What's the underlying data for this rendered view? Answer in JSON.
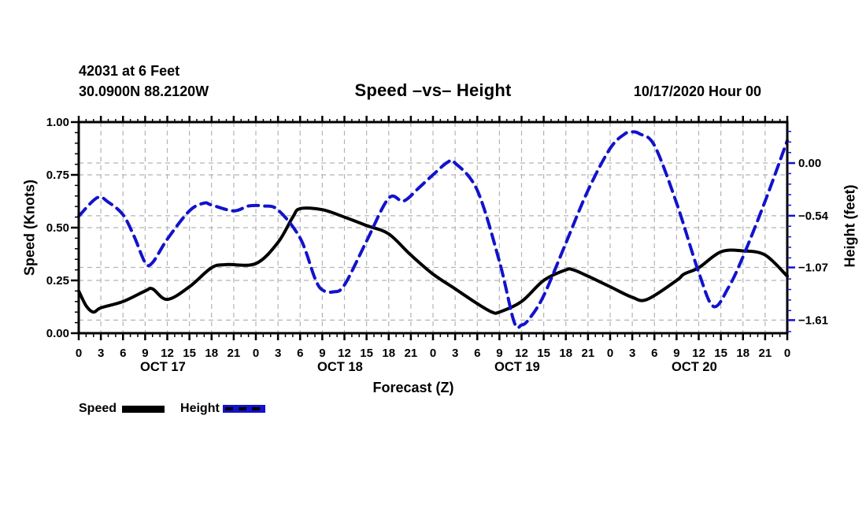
{
  "header": {
    "station_line": "42031 at 6 Feet",
    "coords_line": "30.0900N 88.2120W",
    "datetime": "10/17/2020 Hour 00"
  },
  "legend": {
    "speed_label": "Speed",
    "height_label": "Height"
  },
  "colors": {
    "speed": "#000000",
    "height": "#1212cc",
    "grid": "#b3b3b3",
    "background": "#ffffff"
  },
  "chart_data": {
    "type": "line",
    "title": "Speed –vs– Height",
    "xlabel": "Forecast (Z)",
    "x_hours_total": 96,
    "x_major_step_hours": 3,
    "x_tick_labels": [
      "0",
      "3",
      "6",
      "9",
      "12",
      "15",
      "18",
      "21",
      "0",
      "3",
      "6",
      "9",
      "12",
      "15",
      "18",
      "21",
      "0",
      "3",
      "6",
      "9",
      "12",
      "15",
      "18",
      "21",
      "0",
      "3",
      "6",
      "9",
      "12",
      "15",
      "18",
      "21",
      "0"
    ],
    "day_labels": [
      "OCT 17",
      "OCT 18",
      "OCT 19",
      "OCT 20"
    ],
    "grid": "dashed-gray",
    "legend_position": "bottom-left",
    "left_axis": {
      "label": "Speed (Knots)",
      "range": [
        0,
        1
      ],
      "ticks": [
        {
          "label": "1.00",
          "value": 1.0
        },
        {
          "label": "0.75",
          "value": 0.75
        },
        {
          "label": "0.50",
          "value": 0.5
        },
        {
          "label": "0.25",
          "value": 0.25
        },
        {
          "label": "0.00",
          "value": 0.0
        }
      ],
      "minor_step": 0.05
    },
    "right_axis": {
      "label": "Height (feet)",
      "range": [
        -1.744,
        0.42
      ],
      "ticks": [
        {
          "label": "0.00",
          "value": 0.0
        },
        {
          "label": "−0.54",
          "value": -0.54
        },
        {
          "label": "−1.07",
          "value": -1.07
        },
        {
          "label": "−1.61",
          "value": -1.61
        }
      ],
      "minor_step": 0.108
    },
    "series": [
      {
        "name": "Speed",
        "axis": "left",
        "units": "knots",
        "color": "#000000",
        "line_style": "solid",
        "points": [
          [
            0,
            0.2
          ],
          [
            1,
            0.13
          ],
          [
            2,
            0.1
          ],
          [
            3,
            0.12
          ],
          [
            6,
            0.15
          ],
          [
            9,
            0.2
          ],
          [
            10,
            0.21
          ],
          [
            12,
            0.16
          ],
          [
            15,
            0.22
          ],
          [
            18,
            0.31
          ],
          [
            20,
            0.325
          ],
          [
            24,
            0.33
          ],
          [
            27,
            0.43
          ],
          [
            29,
            0.55
          ],
          [
            30,
            0.59
          ],
          [
            33,
            0.585
          ],
          [
            36,
            0.55
          ],
          [
            39,
            0.51
          ],
          [
            42,
            0.47
          ],
          [
            45,
            0.37
          ],
          [
            48,
            0.28
          ],
          [
            51,
            0.21
          ],
          [
            54,
            0.14
          ],
          [
            56,
            0.1
          ],
          [
            57,
            0.1
          ],
          [
            60,
            0.15
          ],
          [
            63,
            0.25
          ],
          [
            66,
            0.3
          ],
          [
            67,
            0.3
          ],
          [
            69,
            0.27
          ],
          [
            72,
            0.22
          ],
          [
            75,
            0.17
          ],
          [
            77,
            0.16
          ],
          [
            81,
            0.25
          ],
          [
            82,
            0.28
          ],
          [
            84,
            0.31
          ],
          [
            87,
            0.385
          ],
          [
            90,
            0.39
          ],
          [
            93,
            0.37
          ],
          [
            96,
            0.27
          ]
        ]
      },
      {
        "name": "Height",
        "axis": "right",
        "units": "feet",
        "color": "#1212cc",
        "line_style": "dashed",
        "points": [
          [
            0,
            -0.545
          ],
          [
            2.5,
            -0.355
          ],
          [
            4,
            -0.4
          ],
          [
            6,
            -0.53
          ],
          [
            7.5,
            -0.75
          ],
          [
            9,
            -1.02
          ],
          [
            10,
            -1.02
          ],
          [
            12,
            -0.78
          ],
          [
            15,
            -0.49
          ],
          [
            17,
            -0.41
          ],
          [
            18,
            -0.43
          ],
          [
            21,
            -0.49
          ],
          [
            23,
            -0.44
          ],
          [
            25,
            -0.44
          ],
          [
            27,
            -0.48
          ],
          [
            30,
            -0.77
          ],
          [
            32,
            -1.18
          ],
          [
            33,
            -1.3
          ],
          [
            34.5,
            -1.32
          ],
          [
            36,
            -1.25
          ],
          [
            39,
            -0.8
          ],
          [
            42,
            -0.36
          ],
          [
            44,
            -0.39
          ],
          [
            46,
            -0.26
          ],
          [
            48,
            -0.12
          ],
          [
            50,
            0.01
          ],
          [
            51,
            0.0
          ],
          [
            54,
            -0.28
          ],
          [
            57,
            -1.01
          ],
          [
            59,
            -1.63
          ],
          [
            60,
            -1.66
          ],
          [
            61,
            -1.6
          ],
          [
            63,
            -1.36
          ],
          [
            66,
            -0.82
          ],
          [
            69,
            -0.28
          ],
          [
            72,
            0.15
          ],
          [
            74,
            0.3
          ],
          [
            75,
            0.32
          ],
          [
            76,
            0.3
          ],
          [
            78,
            0.18
          ],
          [
            81,
            -0.41
          ],
          [
            84,
            -1.12
          ],
          [
            86,
            -1.47
          ],
          [
            88,
            -1.28
          ],
          [
            90,
            -0.96
          ],
          [
            93,
            -0.39
          ],
          [
            96,
            0.23
          ]
        ]
      }
    ]
  }
}
